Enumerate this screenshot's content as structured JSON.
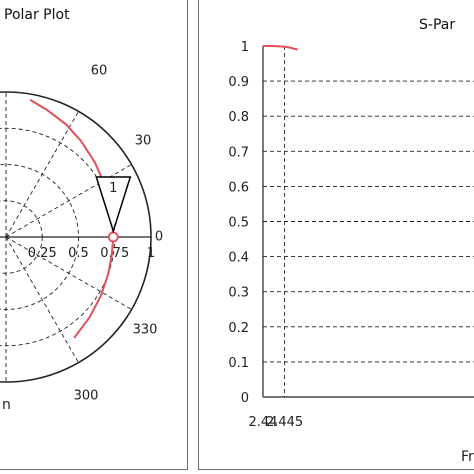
{
  "polar": {
    "title": "Polar Plot",
    "radial_ticks": [
      "0.25",
      "0.5",
      "0.75",
      "1"
    ],
    "angle_labels": [
      "60",
      "30",
      "0",
      "330",
      "300"
    ],
    "marker_label": "1",
    "footer_text": "n"
  },
  "sparam": {
    "title": "S-Par",
    "x_tick_labels": [
      "2.44",
      "2.445"
    ],
    "x_label_fragment": "Fr",
    "y_tick_labels": [
      "1",
      "0.9",
      "0.8",
      "0.7",
      "0.6",
      "0.5",
      "0.4",
      "0.3",
      "0.2",
      "0.1",
      "0"
    ]
  },
  "colors": {
    "trace": "#e0505a",
    "grid": "#222222",
    "frame": "#6e6e6e"
  },
  "chart_data": [
    {
      "type": "line",
      "subtype": "polar",
      "title": "Polar Plot",
      "r_range": [
        0,
        1
      ],
      "r_ticks": [
        0.25,
        0.5,
        0.75,
        1
      ],
      "angle_ticks_deg": [
        0,
        30,
        60,
        300,
        330
      ],
      "grid": true,
      "series": [
        {
          "angle_deg": [
            80,
            72,
            62,
            52,
            40,
            28,
            16,
            8,
            0,
            -10,
            -20,
            -32,
            -44,
            -56
          ],
          "r": [
            0.96,
            0.92,
            0.88,
            0.84,
            0.8,
            0.77,
            0.75,
            0.74,
            0.74,
            0.74,
            0.75,
            0.77,
            0.8,
            0.84
          ]
        }
      ],
      "marker": {
        "label": "1",
        "angle_deg": 0,
        "r": 0.74
      }
    },
    {
      "type": "line",
      "title": "S-Par",
      "xlabel": "Fr",
      "x_ticks": [
        2.44,
        2.445
      ],
      "ylim": [
        0,
        1
      ],
      "y_ticks": [
        0,
        0.1,
        0.2,
        0.3,
        0.4,
        0.5,
        0.6,
        0.7,
        0.8,
        0.9,
        1
      ],
      "grid": true,
      "series": [
        {
          "x": [
            2.44,
            2.442,
            2.444,
            2.445,
            2.446,
            2.447,
            2.448
          ],
          "y": [
            1.0,
            1.0,
            0.999,
            0.998,
            0.996,
            0.993,
            0.99
          ]
        }
      ]
    }
  ]
}
